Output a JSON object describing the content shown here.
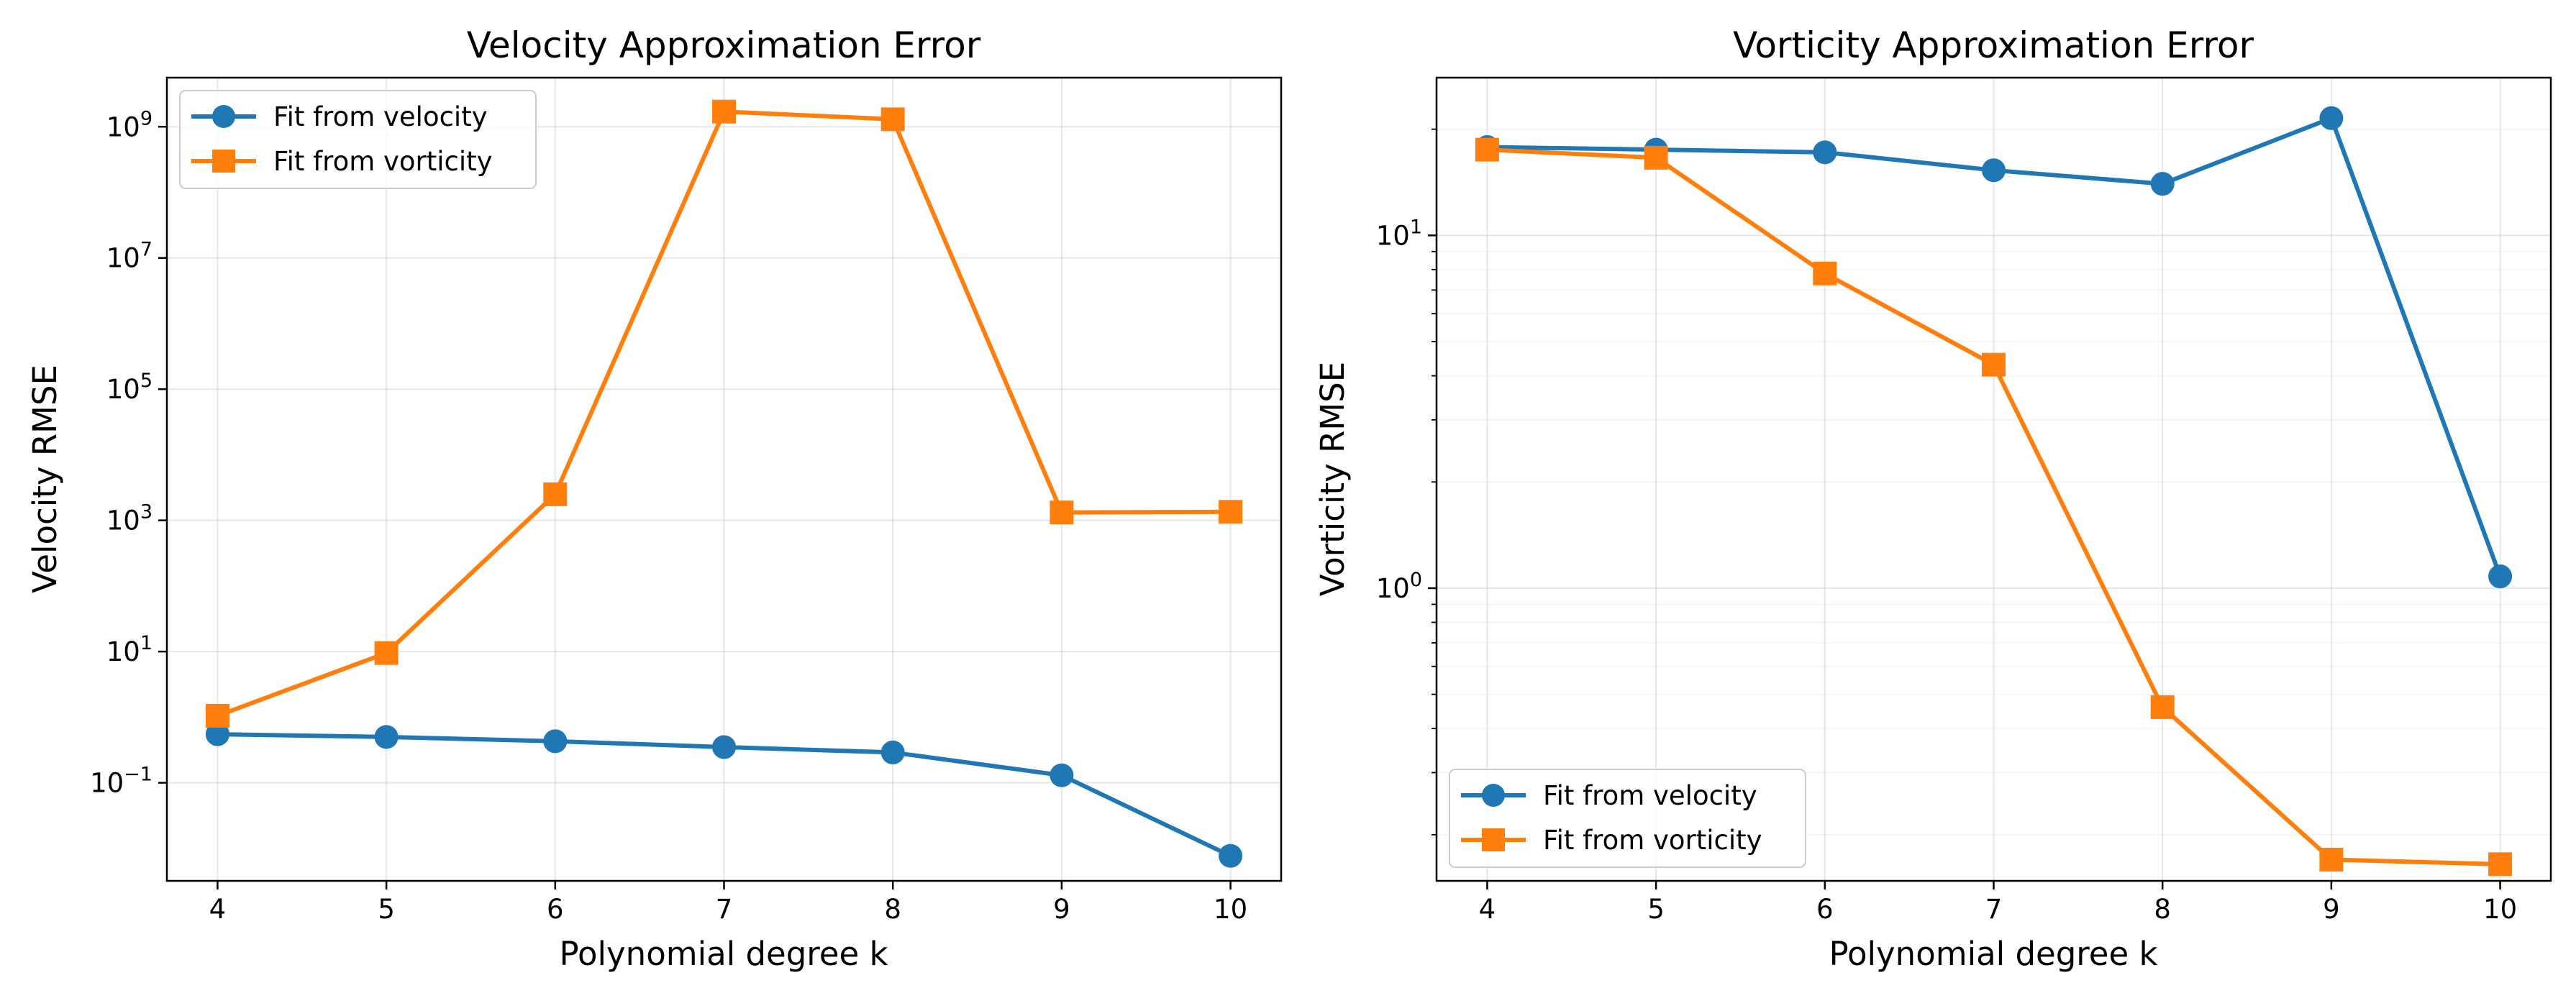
{
  "chart_data": [
    {
      "type": "line",
      "title": "Velocity Approximation Error",
      "xlabel": "Polynomial degree k",
      "ylabel": "Velocity RMSE",
      "yscale": "log",
      "x": [
        4,
        5,
        6,
        7,
        8,
        9,
        10
      ],
      "xlim": [
        3.7,
        10.3
      ],
      "ylim": [
        0.0032,
        5600000000.0
      ],
      "xticks": [
        4,
        5,
        6,
        7,
        8,
        9,
        10
      ],
      "yticks": [
        {
          "value": 0.1,
          "base": "10",
          "exp": "−1"
        },
        {
          "value": 10,
          "base": "10",
          "exp": "1"
        },
        {
          "value": 1000,
          "base": "10",
          "exp": "3"
        },
        {
          "value": 100000,
          "base": "10",
          "exp": "5"
        },
        {
          "value": 10000000,
          "base": "10",
          "exp": "7"
        },
        {
          "value": 1000000000,
          "base": "10",
          "exp": "9"
        }
      ],
      "minor_gridlines": false,
      "grid": true,
      "legend_position": "upper-left",
      "series": [
        {
          "name": "Fit from velocity",
          "color": "#1f77b4",
          "marker": "circle",
          "values": [
            0.55,
            0.5,
            0.43,
            0.35,
            0.29,
            0.13,
            0.0077
          ]
        },
        {
          "name": "Fit from vorticity",
          "color": "#ff7f0e",
          "marker": "square",
          "values": [
            1.05,
            9.5,
            2500,
            1700000000.0,
            1300000000.0,
            1320,
            1350
          ]
        }
      ]
    },
    {
      "type": "line",
      "title": "Vorticity Approximation Error",
      "xlabel": "Polynomial degree k",
      "ylabel": "Vorticity RMSE",
      "yscale": "log",
      "x": [
        4,
        5,
        6,
        7,
        8,
        9,
        10
      ],
      "xlim": [
        3.7,
        10.3
      ],
      "ylim": [
        0.148,
        28
      ],
      "xticks": [
        4,
        5,
        6,
        7,
        8,
        9,
        10
      ],
      "yticks": [
        {
          "value": 1,
          "base": "10",
          "exp": "0"
        },
        {
          "value": 10,
          "base": "10",
          "exp": "1"
        }
      ],
      "minor_gridlines": true,
      "grid": true,
      "legend_position": "lower-left",
      "series": [
        {
          "name": "Fit from velocity",
          "color": "#1f77b4",
          "marker": "circle",
          "values": [
            17.8,
            17.5,
            17.2,
            15.3,
            14.0,
            21.5,
            1.08
          ]
        },
        {
          "name": "Fit from vorticity",
          "color": "#ff7f0e",
          "marker": "square",
          "values": [
            17.5,
            16.6,
            7.8,
            4.3,
            0.46,
            0.17,
            0.165
          ]
        }
      ]
    }
  ]
}
